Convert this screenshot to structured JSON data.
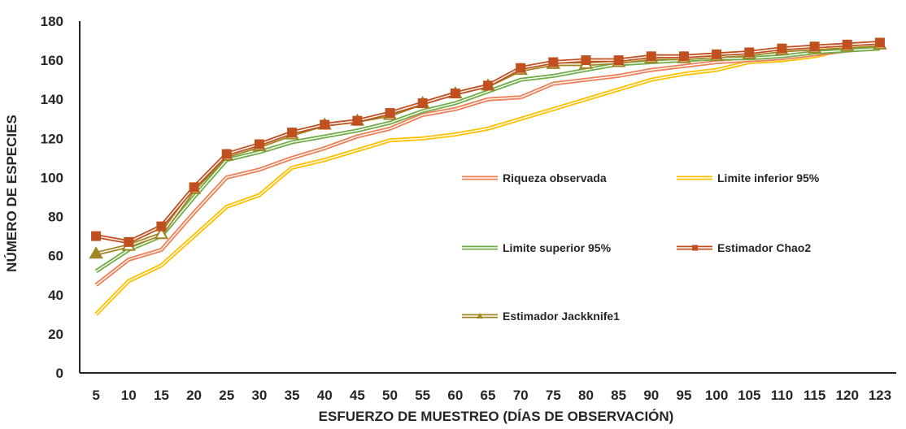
{
  "chart_data": {
    "type": "line",
    "title": "",
    "xlabel": "ESFUERZO DE MUESTREO (DÍAS DE OBSERVACIÓN)",
    "ylabel": "NÚMERO DE ESPECIES",
    "ylim": [
      0,
      180
    ],
    "yticks": [
      "0",
      "20",
      "40",
      "60",
      "80",
      "100",
      "120",
      "140",
      "160",
      "180"
    ],
    "categories": [
      "5",
      "10",
      "15",
      "20",
      "25",
      "30",
      "35",
      "40",
      "45",
      "50",
      "55",
      "60",
      "65",
      "70",
      "75",
      "80",
      "85",
      "90",
      "95",
      "100",
      "105",
      "110",
      "115",
      "120",
      "123"
    ],
    "grid": false,
    "legend": "inside-right",
    "series": [
      {
        "name": "Riqueza observada",
        "color": "#ee7f55",
        "values": [
          45,
          58,
          63,
          82,
          100,
          104,
          110,
          115,
          121,
          125,
          132,
          135,
          140,
          141,
          148,
          150,
          152,
          155,
          157,
          159,
          160,
          161,
          163,
          165,
          167
        ]
      },
      {
        "name": "Limite inferior 95%",
        "color": "#ffc000",
        "values": [
          30,
          47,
          55,
          70,
          85,
          91,
          105,
          109,
          114,
          119,
          120,
          122,
          125,
          130,
          135,
          140,
          145,
          150,
          153,
          155,
          159,
          160,
          162,
          166,
          168
        ]
      },
      {
        "name": "Limite superior 95%",
        "color": "#70ad47",
        "values": [
          52,
          63,
          70,
          90,
          109,
          113,
          118,
          121,
          124,
          128,
          134,
          138,
          144,
          150,
          152,
          155,
          158,
          159,
          160,
          161,
          161,
          162,
          164,
          165,
          166
        ]
      },
      {
        "name": "Estimador Chao2",
        "color": "#c0501f",
        "marker": "square",
        "values": [
          70,
          67,
          75,
          95,
          112,
          117,
          123,
          127,
          129,
          133,
          138,
          143,
          147,
          156,
          159,
          160,
          160,
          162,
          162,
          163,
          164,
          166,
          167,
          168,
          169
        ]
      },
      {
        "name": "Estimador Jackknife1",
        "color": "#9f8624",
        "marker": "triangle",
        "values": [
          61,
          65,
          71,
          94,
          111,
          116,
          122,
          127,
          129,
          132,
          138,
          143,
          147,
          155,
          158,
          158,
          159,
          161,
          161,
          162,
          163,
          165,
          166,
          167,
          168
        ]
      }
    ]
  }
}
